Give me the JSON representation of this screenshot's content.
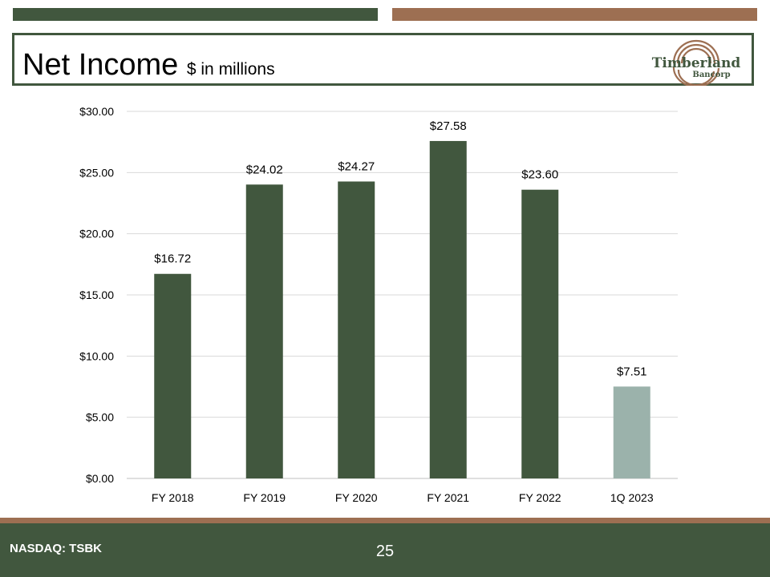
{
  "slide": {
    "title": "Net Income",
    "subtitle": "$ in millions",
    "logo_text_main": "Timberland",
    "logo_text_sub": "Bancorp",
    "footer_ticker": "NASDAQ: TSBK",
    "page_number": "25"
  },
  "colors": {
    "primary_green": "#41573e",
    "accent_brown": "#9d6f52",
    "highlight_bar": "#9bb2ab"
  },
  "chart_data": {
    "type": "bar",
    "categories": [
      "FY 2018",
      "FY 2019",
      "FY 2020",
      "FY 2021",
      "FY 2022",
      "1Q 2023"
    ],
    "values": [
      16.72,
      24.02,
      24.27,
      27.58,
      23.6,
      7.51
    ],
    "data_labels": [
      "$16.72",
      "$24.02",
      "$24.27",
      "$27.58",
      "$23.60",
      "$7.51"
    ],
    "yticks": [
      "$0.00",
      "$5.00",
      "$10.00",
      "$15.00",
      "$20.00",
      "$25.00",
      "$30.00"
    ],
    "ylim": [
      0,
      30
    ],
    "grid": true,
    "legend": "none",
    "bar_colors": [
      "#41573e",
      "#41573e",
      "#41573e",
      "#41573e",
      "#41573e",
      "#9bb2ab"
    ]
  }
}
